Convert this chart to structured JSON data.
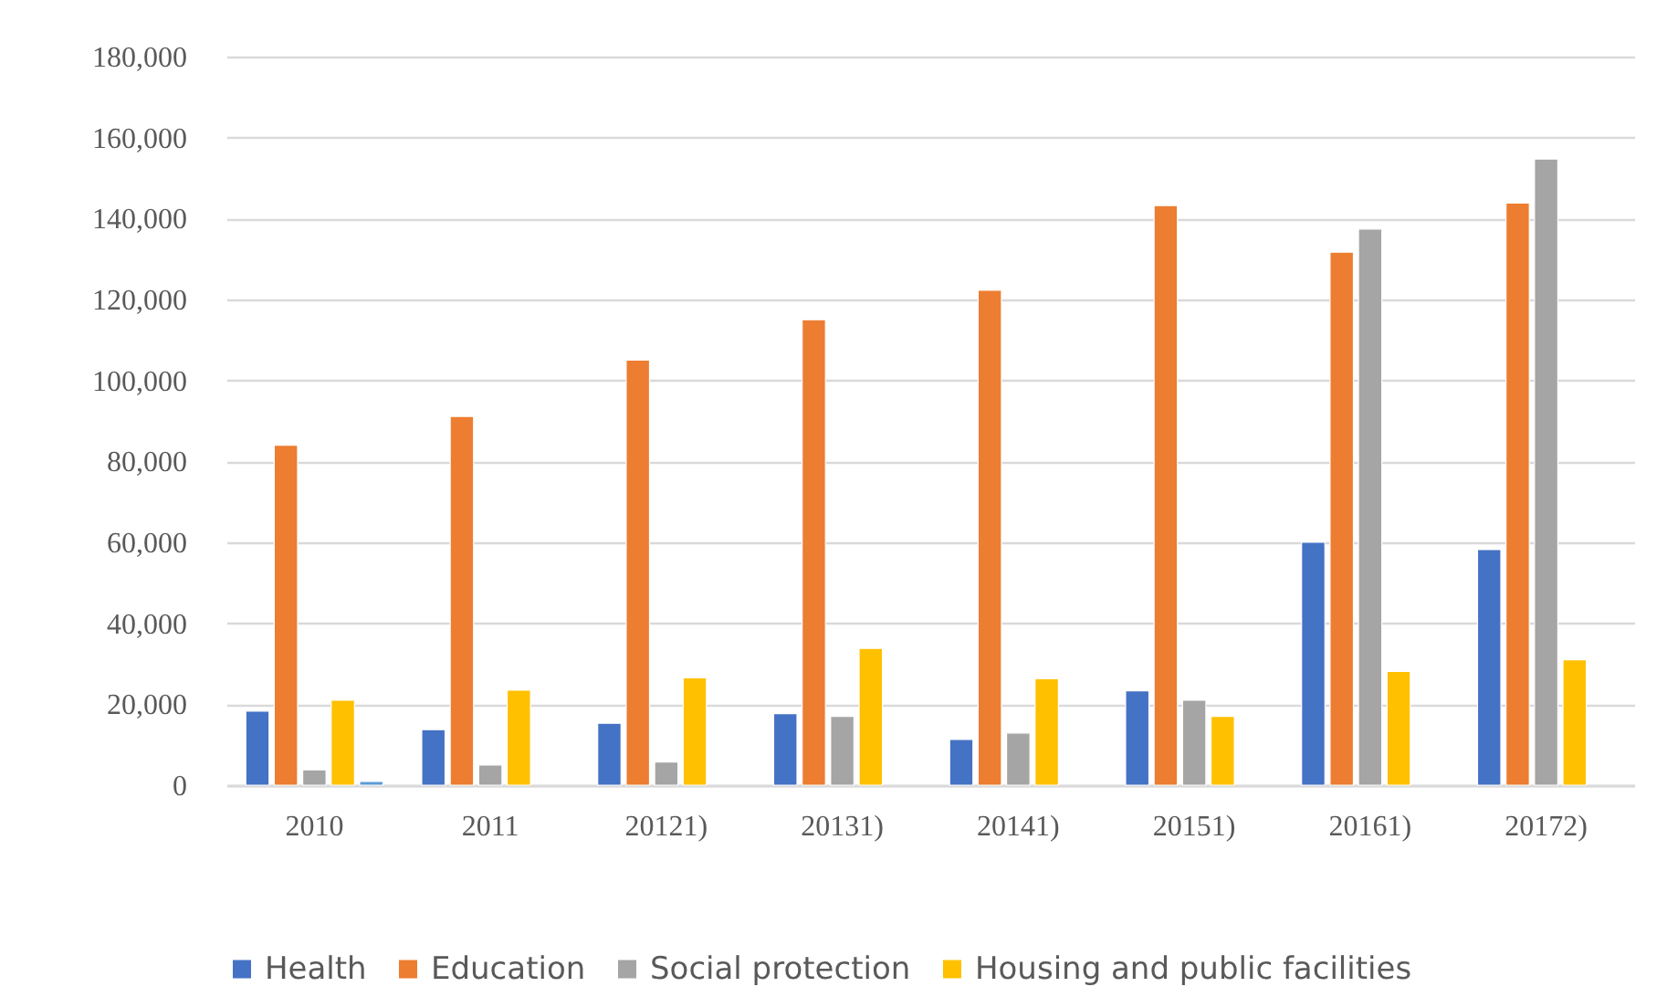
{
  "chart_data": {
    "type": "bar",
    "categories": [
      "2010",
      "2011",
      "20121)",
      "20131)",
      "20141)",
      "20151)",
      "20161)",
      "20172)"
    ],
    "series": [
      {
        "name": "Health",
        "color": "#4472c4",
        "values": [
          18300,
          13700,
          15300,
          17700,
          11300,
          23300,
          60000,
          58200
        ]
      },
      {
        "name": "Education",
        "color": "#ed7d31",
        "values": [
          84000,
          91100,
          105000,
          115000,
          122300,
          143200,
          131700,
          143800
        ]
      },
      {
        "name": "Social protection",
        "color": "#a5a5a5",
        "values": [
          3800,
          5000,
          5700,
          17000,
          12900,
          21000,
          137400,
          154700
        ]
      },
      {
        "name": "Housing and public facilities",
        "color": "#ffc000",
        "values": [
          21000,
          23500,
          26500,
          33800,
          26300,
          17000,
          28100,
          31000
        ]
      },
      {
        "color": "#5b9bd5",
        "values": [
          900,
          null,
          null,
          null,
          null,
          null,
          null,
          null
        ]
      }
    ],
    "ylim": [
      0,
      180000
    ],
    "yticks": [
      {
        "value": 0,
        "label": "0"
      },
      {
        "value": 20000,
        "label": "20,000"
      },
      {
        "value": 40000,
        "label": "40,000"
      },
      {
        "value": 60000,
        "label": "60,000"
      },
      {
        "value": 80000,
        "label": "80,000"
      },
      {
        "value": 100000,
        "label": "100,000"
      },
      {
        "value": 120000,
        "label": "120,000"
      },
      {
        "value": 140000,
        "label": "140,000"
      },
      {
        "value": 160000,
        "label": "160,000"
      },
      {
        "value": 180000,
        "label": "180,000"
      }
    ],
    "grid": "y",
    "legend": "bottom"
  }
}
